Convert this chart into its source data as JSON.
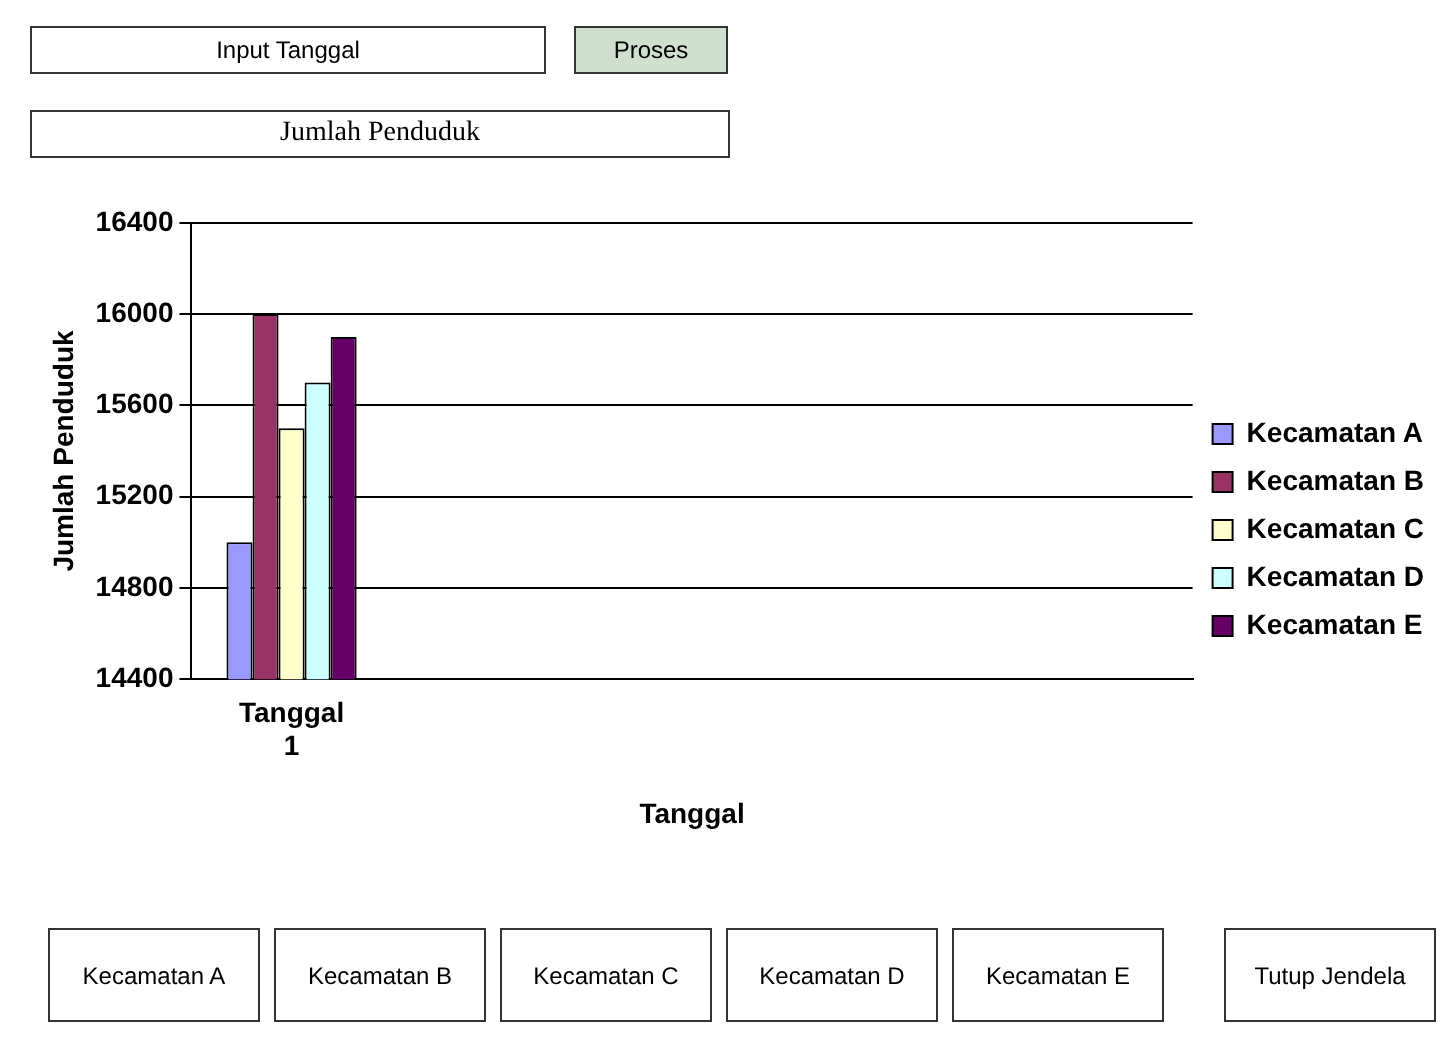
{
  "chart_data": {
    "type": "bar",
    "xlabel": "Tanggal",
    "ylabel": "Jumlah Penduduk",
    "categories": [
      "Tanggal 1",
      null,
      null,
      null,
      null
    ],
    "series": [
      {
        "name": "Kecamatan A",
        "color": "#9999ff",
        "values": [
          15000,
          null,
          null,
          null,
          null
        ]
      },
      {
        "name": "Kecamatan B",
        "color": "#993366",
        "values": [
          16000,
          null,
          null,
          null,
          null
        ]
      },
      {
        "name": "Kecamatan C",
        "color": "#ffffcc",
        "values": [
          15500,
          null,
          null,
          null,
          null
        ]
      },
      {
        "name": "Kecamatan D",
        "color": "#ccffff",
        "values": [
          15700,
          null,
          null,
          null,
          null
        ]
      },
      {
        "name": "Kecamatan E",
        "color": "#660066",
        "values": [
          15900,
          null,
          null,
          null,
          null
        ]
      }
    ],
    "ylim": [
      14400,
      16400
    ],
    "yticks": [
      14400,
      14800,
      15200,
      15600,
      16000,
      16400
    ],
    "grid": "y",
    "legend": "right",
    "annotations": [
      "Input Tanggal",
      "Proses",
      "Jumlah Penduduk",
      "Kecamatan A",
      "Kecamatan B",
      "Kecamatan C",
      "Kecamatan D",
      "Kecamatan E",
      "Tutup Jendela"
    ]
  }
}
